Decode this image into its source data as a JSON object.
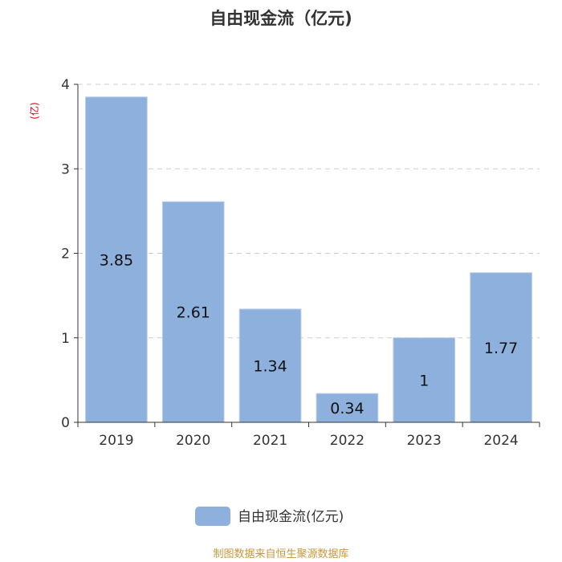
{
  "chart_data": {
    "type": "bar",
    "title": "自由现金流（亿元)",
    "y_unit": "(亿)",
    "categories": [
      "2019",
      "2020",
      "2021",
      "2022",
      "2023",
      "2024"
    ],
    "series": [
      {
        "name": "自由现金流(亿元)",
        "values": [
          3.85,
          2.61,
          1.34,
          0.34,
          1,
          1.77
        ],
        "data_labels": [
          "3.85",
          "2.61",
          "1.34",
          "0.34",
          "1",
          "1.77"
        ],
        "color": "#8eb0dc"
      }
    ],
    "ylim": [
      0,
      4
    ],
    "yticks": [
      "0",
      "1",
      "2",
      "3",
      "4"
    ],
    "grid": true,
    "grid_style": "dashed",
    "legend_position": "bottom-center"
  },
  "source": "制图数据来自恒生聚源数据库"
}
